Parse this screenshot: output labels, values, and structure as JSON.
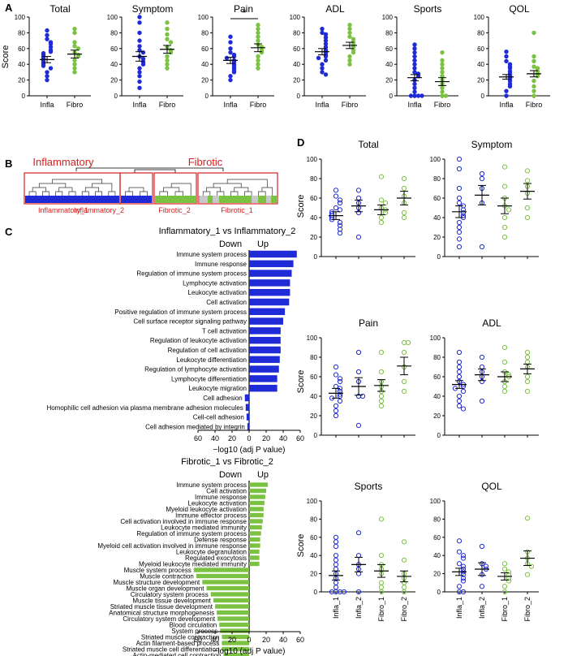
{
  "colors": {
    "infla": "#1f2bd6",
    "fibro": "#7cc242",
    "red": "#d42020",
    "axis": "#000000",
    "gray": "#c8c8c8"
  },
  "panels": {
    "a": "A",
    "b": "B",
    "c": "C",
    "d": "D"
  },
  "panel_a": {
    "ylabel": "Score",
    "ylim": [
      0,
      100
    ],
    "yticks": [
      "0",
      "20",
      "40",
      "60",
      "80",
      "100"
    ],
    "groups": [
      "Infla",
      "Fibro"
    ],
    "charts": [
      {
        "title": "Total",
        "sig": "",
        "infla_mean": 46,
        "infla_sem": 4,
        "fibro_mean": 53,
        "fibro_sem": 5,
        "infla": [
          83,
          77,
          72,
          68,
          66,
          62,
          58,
          56,
          54,
          52,
          50,
          48,
          46,
          44,
          42,
          40,
          38,
          35,
          30,
          25,
          20
        ],
        "fibro": [
          85,
          80,
          68,
          63,
          60,
          55,
          52,
          50,
          45,
          40,
          35,
          30
        ]
      },
      {
        "title": "Symptom",
        "sig": "",
        "infla_mean": 50,
        "infla_sem": 6,
        "fibro_mean": 59,
        "fibro_sem": 5,
        "infla": [
          100,
          93,
          80,
          70,
          63,
          58,
          55,
          50,
          47,
          43,
          40,
          35,
          30,
          25,
          18,
          10
        ],
        "fibro": [
          93,
          85,
          78,
          72,
          68,
          62,
          58,
          55,
          50,
          45,
          40,
          35
        ]
      },
      {
        "title": "Pain",
        "sig": "*",
        "infla_mean": 45,
        "infla_sem": 4,
        "fibro_mean": 61,
        "fibro_sem": 5,
        "infla": [
          75,
          68,
          60,
          55,
          52,
          50,
          48,
          45,
          43,
          40,
          38,
          35,
          32,
          30,
          25,
          20
        ],
        "fibro": [
          90,
          85,
          80,
          75,
          70,
          65,
          62,
          58,
          55,
          50,
          45,
          40,
          35
        ]
      },
      {
        "title": "ADL",
        "sig": "",
        "infla_mean": 56,
        "infla_sem": 4,
        "fibro_mean": 64,
        "fibro_sem": 4,
        "infla": [
          85,
          80,
          78,
          74,
          70,
          66,
          62,
          58,
          55,
          52,
          50,
          48,
          45,
          40,
          35,
          30,
          27
        ],
        "fibro": [
          90,
          85,
          80,
          75,
          72,
          68,
          65,
          62,
          58,
          55,
          50,
          45,
          40
        ]
      },
      {
        "title": "Sports",
        "sig": "",
        "infla_mean": 23,
        "infla_sem": 4,
        "fibro_mean": 18,
        "fibro_sem": 5,
        "infla": [
          65,
          60,
          55,
          50,
          45,
          40,
          35,
          30,
          28,
          25,
          20,
          15,
          10,
          5,
          0,
          0,
          0,
          0
        ],
        "fibro": [
          55,
          45,
          40,
          35,
          30,
          25,
          20,
          15,
          10,
          5,
          0,
          0
        ]
      },
      {
        "title": "QOL",
        "sig": "",
        "infla_mean": 24,
        "infla_sem": 3,
        "fibro_mean": 28,
        "fibro_sem": 4,
        "infla": [
          56,
          50,
          44,
          40,
          37,
          35,
          31,
          28,
          25,
          22,
          19,
          15,
          12,
          6,
          0
        ],
        "fibro": [
          80,
          50,
          44,
          37,
          35,
          31,
          28,
          25,
          19,
          12,
          6,
          0
        ]
      }
    ]
  },
  "panel_b": {
    "left_title": "Inflammatory",
    "right_title": "Fibrotic",
    "labels": [
      "Inflammatory_1",
      "Inflammatory_2",
      "Fibrotic_2",
      "Fibrotic_1"
    ]
  },
  "panel_c": {
    "xlabel": "−log10 (adj P value)",
    "xticks": [
      "60",
      "40",
      "20",
      "0",
      "20",
      "40",
      "60"
    ],
    "down_label": "Down",
    "up_label": "Up",
    "chart_data": [
      {
        "type": "bar",
        "title": "Inflammatory_1 vs Inflammatory_2",
        "categories": [
          "Immune system process",
          "Immune response",
          "Regulation of immune system process",
          "Lymphocyte activation",
          "Leukocyte activation",
          "Cell activation",
          "Positive regulation of immune system process",
          "Cell surface receptor signaling pathway",
          "T cell activation",
          "Regulation of leukocyte activation",
          "Regulation of cell activation",
          "Leukocyte differentiation",
          "Regulation of lymphocyte activation",
          "Lymphocyte differentiation",
          "Leukocyte migration",
          "Cell adhesion",
          "Homophilic cell adhesion via plasma membrane adhesion molecules",
          "Cell-cell adhesion",
          "Cell adhesion mediated by integrin"
        ],
        "values": [
          56,
          52,
          50,
          48,
          48,
          47,
          42,
          40,
          37,
          37,
          37,
          36,
          35,
          33,
          33,
          -5,
          -4,
          -3,
          -2
        ]
      },
      {
        "type": "bar",
        "title": "Fibrotic_1 vs Fibrotic_2",
        "categories": [
          "Immune system process",
          "Cell activation",
          "Immune response",
          "Leukocyte activation",
          "Myeloid leukocyte activation",
          "Immune effector process",
          "Cell activation involved in immune response",
          "Leukocyte mediated immunity",
          "Regulation of immune system process",
          "Defense response",
          "Myeloid cell activation involved in immune response",
          "Leukocyte degranulation",
          "Regulated exocytosis",
          "Myeloid leukocyte mediated immunity",
          "Muscle system process",
          "Muscle contraction",
          "Muscle structure development",
          "Muscle organ development",
          "Circulatory system process",
          "Muscle tissue development",
          "Striated muscle tissue development",
          "Anatomical structure morphogenesis",
          "Circulatory system development",
          "Blood circulation",
          "System process",
          "Striated muscle contraction",
          "Actin filament-based process",
          "Striated muscle cell differentiation",
          "Actin-mediated cell contraction"
        ],
        "values": [
          22,
          20,
          19,
          18,
          17,
          17,
          16,
          15,
          14,
          13,
          13,
          12,
          12,
          12,
          -65,
          -62,
          -55,
          -50,
          -45,
          -42,
          -40,
          -38,
          -37,
          -35,
          -34,
          -32,
          -32,
          -32,
          -30
        ]
      }
    ]
  },
  "panel_d": {
    "ylabel": "Score",
    "ylim": [
      0,
      100
    ],
    "yticks": [
      "0",
      "20",
      "40",
      "60",
      "80",
      "100"
    ],
    "groups": [
      "Infla_1",
      "Infla_2",
      "Fibro_1",
      "Fibro_2"
    ],
    "charts": [
      {
        "title": "Total",
        "means": [
          42,
          52,
          48,
          60
        ],
        "sems": [
          4,
          6,
          5,
          7
        ],
        "points": [
          [
            68,
            62,
            58,
            55,
            50,
            48,
            46,
            44,
            42,
            40,
            38,
            35,
            32,
            28,
            24
          ],
          [
            68,
            60,
            55,
            50,
            45,
            20
          ],
          [
            82,
            58,
            55,
            50,
            48,
            45,
            40,
            35
          ],
          [
            80,
            70,
            62,
            55,
            45,
            40
          ]
        ]
      },
      {
        "title": "Symptom",
        "means": [
          46,
          63,
          52,
          67
        ],
        "sems": [
          6,
          10,
          8,
          8
        ],
        "points": [
          [
            100,
            90,
            70,
            60,
            55,
            52,
            48,
            45,
            42,
            40,
            35,
            30,
            25,
            18,
            10
          ],
          [
            85,
            80,
            70,
            55,
            10
          ],
          [
            92,
            72,
            60,
            52,
            48,
            40,
            30,
            20
          ],
          [
            88,
            78,
            72,
            65,
            50,
            40
          ]
        ]
      },
      {
        "title": "Pain",
        "means": [
          43,
          50,
          51,
          71
        ],
        "sems": [
          5,
          9,
          6,
          9
        ],
        "points": [
          [
            70,
            62,
            58,
            55,
            50,
            48,
            45,
            42,
            40,
            38,
            35,
            30,
            25,
            20
          ],
          [
            85,
            65,
            55,
            40,
            40,
            10
          ],
          [
            85,
            65,
            55,
            50,
            45,
            40,
            35,
            30
          ],
          [
            95,
            95,
            85,
            70,
            55,
            45
          ]
        ]
      },
      {
        "title": "ADL",
        "means": [
          52,
          62,
          60,
          68
        ],
        "sems": [
          4,
          6,
          5,
          5
        ],
        "points": [
          [
            85,
            75,
            70,
            65,
            60,
            55,
            52,
            50,
            48,
            45,
            40,
            35,
            30,
            27
          ],
          [
            80,
            70,
            65,
            60,
            55,
            35
          ],
          [
            90,
            75,
            65,
            62,
            60,
            55,
            50,
            45
          ],
          [
            85,
            80,
            75,
            70,
            60,
            55,
            45
          ]
        ]
      },
      {
        "title": "Sports",
        "means": [
          18,
          30,
          23,
          17
        ],
        "sems": [
          5,
          8,
          7,
          6
        ],
        "points": [
          [
            60,
            55,
            50,
            40,
            35,
            30,
            25,
            20,
            15,
            10,
            5,
            0,
            0,
            0,
            0
          ],
          [
            65,
            40,
            30,
            25,
            20,
            0
          ],
          [
            80,
            40,
            30,
            25,
            20,
            10,
            5,
            0
          ],
          [
            55,
            35,
            20,
            15,
            10,
            5,
            0
          ]
        ]
      },
      {
        "title": "QOL",
        "means": [
          22,
          25,
          17,
          37
        ],
        "sems": [
          4,
          7,
          4,
          8
        ],
        "points": [
          [
            56,
            44,
            40,
            37,
            31,
            28,
            25,
            22,
            19,
            15,
            12,
            6,
            0,
            0
          ],
          [
            50,
            31,
            28,
            25,
            19,
            6
          ],
          [
            31,
            25,
            22,
            19,
            15,
            12,
            6,
            0
          ],
          [
            81,
            44,
            37,
            31,
            28,
            19
          ]
        ]
      }
    ]
  }
}
